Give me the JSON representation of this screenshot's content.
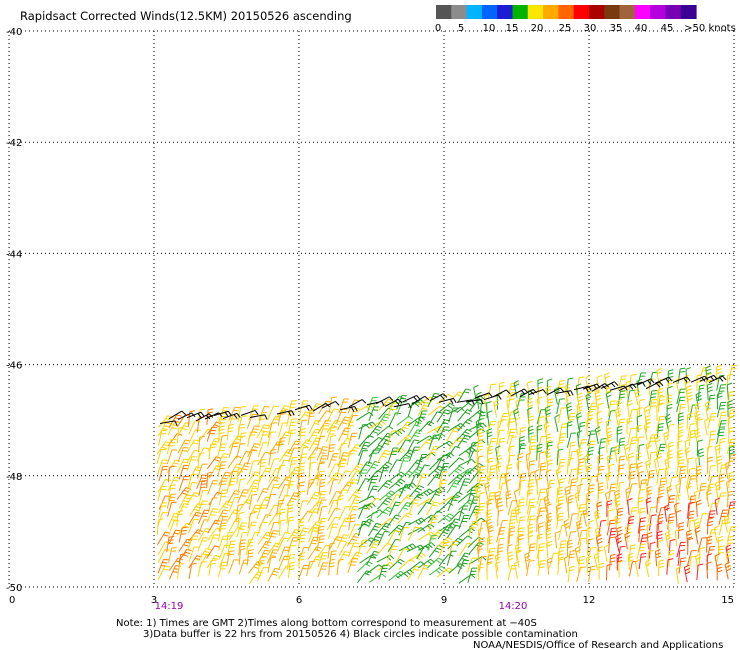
{
  "chart_data": {
    "type": "wind-barb-map",
    "title": "Rapidsact Corrected Winds(12.5KM) 20150526 ascending",
    "legend": {
      "ticks": [
        "0",
        "5",
        "10",
        "15",
        "20",
        "25",
        "30",
        "35",
        "40",
        "45",
        ">50 knots"
      ],
      "colors": [
        "#555555",
        "#8c8c8c",
        "#00b4ff",
        "#0064ff",
        "#1c1cd2",
        "#00b400",
        "#ffe600",
        "#ffaa00",
        "#ff6600",
        "#ff0000",
        "#aa0000",
        "#7a3a10",
        "#a0643c",
        "#ff00ff",
        "#b400dc",
        "#7800b4",
        "#3c0096"
      ]
    },
    "y_ticks": [
      "-40",
      "-42",
      "-44",
      "-46",
      "-48",
      "-50"
    ],
    "x_ticks": [
      "0",
      "3",
      "6",
      "9",
      "12",
      "15"
    ],
    "time_labels": [
      "14:19",
      "14:20"
    ],
    "time_color": "#9000b0",
    "xlim": [
      0,
      15
    ],
    "ylim": [
      -40,
      -50
    ],
    "grid": true
  },
  "notes": {
    "line1": "Note: 1) Times are GMT 2)Times along bottom correspond to measurement at −40S",
    "line2": "3)Data buffer is 22 hrs from 20150526 4) Black circles indicate possible contamination",
    "line3": "NOAA/NESDIS/Office of Research and Applications"
  }
}
